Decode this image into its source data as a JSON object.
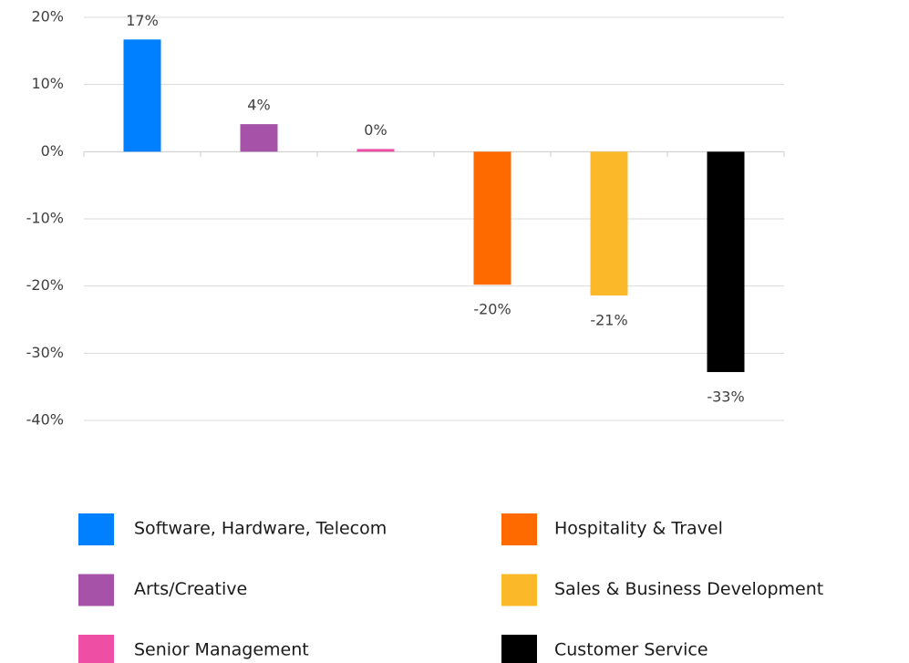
{
  "chart_data": {
    "type": "bar",
    "categories": [
      "Software, Hardware, Telecom",
      "Arts/Creative",
      "Senior Management",
      "Hospitality & Travel",
      "Sales & Business Development",
      "Customer Service"
    ],
    "values": [
      16.7,
      4.1,
      0.4,
      -19.8,
      -21.4,
      -32.8
    ],
    "value_labels": [
      "17%",
      "4%",
      "0%",
      "-20%",
      "-21%",
      "-33%"
    ],
    "colors": [
      "#0080ff",
      "#a552a8",
      "#ee4fa4",
      "#ff6a00",
      "#fbb829",
      "#000000"
    ],
    "ylim": [
      -40,
      20
    ],
    "yticks": [
      {
        "value": -40,
        "label": "-40%"
      },
      {
        "value": -30,
        "label": "-30%"
      },
      {
        "value": -20,
        "label": "-20%"
      },
      {
        "value": -10,
        "label": "-10%"
      },
      {
        "value": 0,
        "label": "0%"
      },
      {
        "value": 10,
        "label": "10%"
      },
      {
        "value": 20,
        "label": "20%"
      }
    ],
    "grid": true
  }
}
